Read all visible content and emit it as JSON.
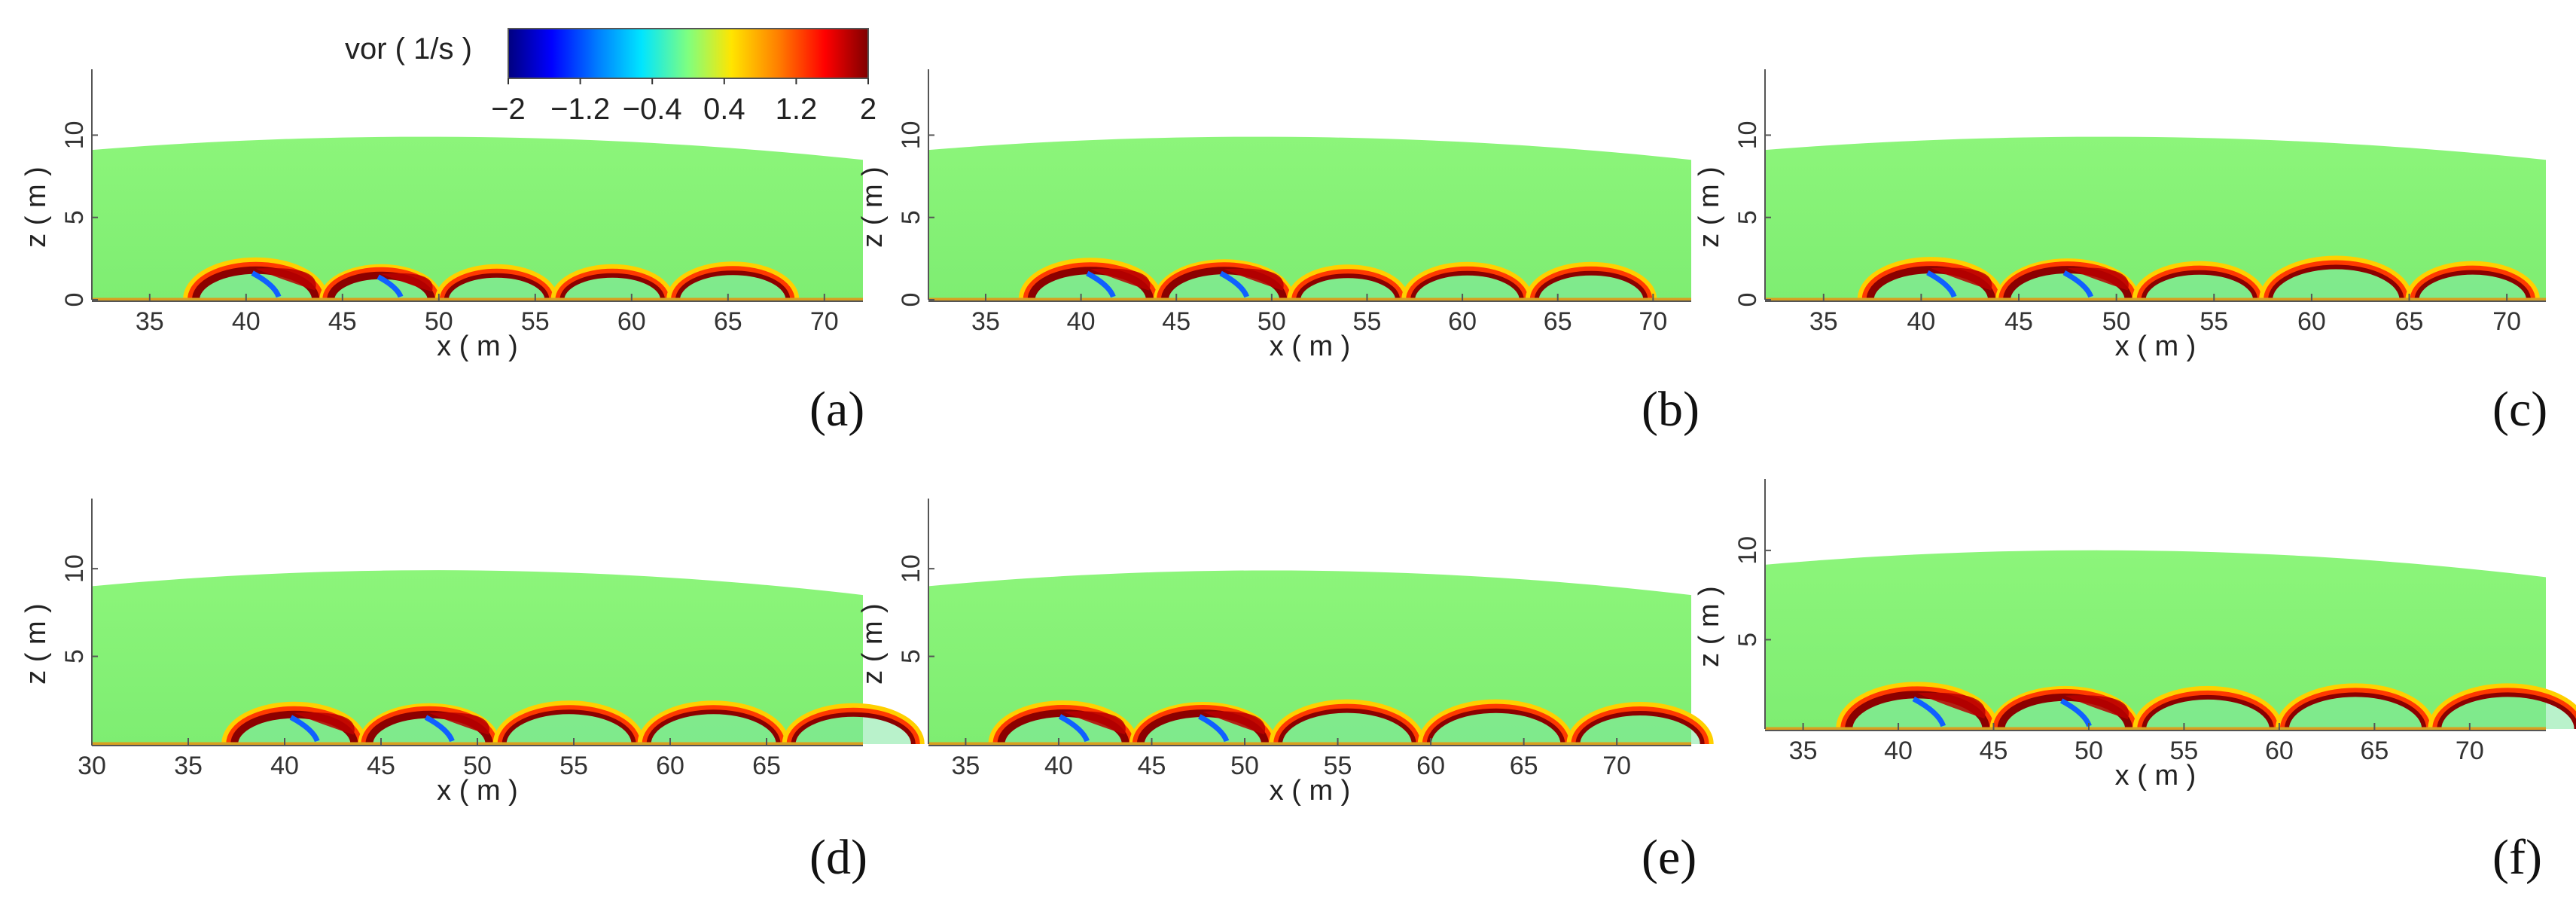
{
  "colorbar": {
    "title": "vor ( 1/s )",
    "ticks": [
      "−2",
      "−1.2",
      "−0.4",
      "0.4",
      "1.2",
      "2"
    ],
    "tick_values": [
      -2,
      -1.2,
      -0.4,
      0.4,
      1.2,
      2
    ],
    "range": [
      -2,
      2
    ],
    "colors": [
      "#00007f",
      "#0000ff",
      "#007fff",
      "#00e5ff",
      "#7fff7f",
      "#ffe500",
      "#ff7f00",
      "#ff0000",
      "#7f0000"
    ]
  },
  "colors": {
    "background_field": "#86f577",
    "field_dark": "#6ee26a",
    "ground_line": "#d8a020",
    "blue_vortex": "#1060ff"
  },
  "chart_data": [
    {
      "panel": "(a)",
      "type": "heatmap",
      "xlabel": "x ( m )",
      "ylabel": "z ( m )",
      "x_ticks": [
        "35",
        "40",
        "45",
        "50",
        "55",
        "60",
        "65",
        "70"
      ],
      "y_ticks": [
        "0",
        "5",
        "10"
      ],
      "xlim": [
        32,
        72
      ],
      "ylim": [
        0,
        14
      ],
      "free_surface": {
        "x": [
          32,
          50,
          72
        ],
        "z": [
          9.1,
          9.9,
          8.5
        ]
      },
      "vortex_arches": [
        {
          "x_start": 37,
          "x_end": 44
        },
        {
          "x_start": 44,
          "x_end": 50
        },
        {
          "x_start": 50,
          "x_end": 56
        },
        {
          "x_start": 56,
          "x_end": 62
        },
        {
          "x_start": 62,
          "x_end": 68.5
        }
      ]
    },
    {
      "panel": "(b)",
      "type": "heatmap",
      "xlabel": "x ( m )",
      "ylabel": "z ( m )",
      "x_ticks": [
        "35",
        "40",
        "45",
        "50",
        "55",
        "60",
        "65",
        "70"
      ],
      "y_ticks": [
        "0",
        "5",
        "10"
      ],
      "xlim": [
        32,
        72
      ],
      "ylim": [
        0,
        14
      ],
      "free_surface": {
        "x": [
          32,
          50,
          72
        ],
        "z": [
          9.1,
          9.9,
          8.5
        ]
      },
      "vortex_arches": [
        {
          "x_start": 37,
          "x_end": 44
        },
        {
          "x_start": 44,
          "x_end": 51
        },
        {
          "x_start": 51,
          "x_end": 57
        },
        {
          "x_start": 57,
          "x_end": 63.5
        },
        {
          "x_start": 63.5,
          "x_end": 70
        }
      ]
    },
    {
      "panel": "(c)",
      "type": "heatmap",
      "xlabel": "x ( m )",
      "ylabel": "z ( m )",
      "x_ticks": [
        "35",
        "40",
        "45",
        "50",
        "55",
        "60",
        "65",
        "70"
      ],
      "y_ticks": [
        "0",
        "5",
        "10"
      ],
      "xlim": [
        32,
        72
      ],
      "ylim": [
        0,
        14
      ],
      "free_surface": {
        "x": [
          32,
          50,
          72
        ],
        "z": [
          9.1,
          9.9,
          8.5
        ]
      },
      "vortex_arches": [
        {
          "x_start": 37,
          "x_end": 44
        },
        {
          "x_start": 44,
          "x_end": 51
        },
        {
          "x_start": 51,
          "x_end": 57.5
        },
        {
          "x_start": 57.5,
          "x_end": 65
        },
        {
          "x_start": 65,
          "x_end": 71.5
        }
      ]
    },
    {
      "panel": "(d)",
      "type": "heatmap",
      "xlabel": "x ( m )",
      "ylabel": "z ( m )",
      "x_ticks": [
        "30",
        "35",
        "40",
        "45",
        "50",
        "55",
        "60",
        "65"
      ],
      "y_ticks": [
        "5",
        "10"
      ],
      "xlim": [
        30,
        70
      ],
      "ylim": [
        0,
        14
      ],
      "free_surface": {
        "x": [
          30,
          50,
          70
        ],
        "z": [
          9.0,
          9.9,
          8.5
        ]
      },
      "vortex_arches": [
        {
          "x_start": 37,
          "x_end": 44
        },
        {
          "x_start": 44,
          "x_end": 51
        },
        {
          "x_start": 51,
          "x_end": 58.5
        },
        {
          "x_start": 58.5,
          "x_end": 66
        },
        {
          "x_start": 66,
          "x_end": 73
        }
      ]
    },
    {
      "panel": "(e)",
      "type": "heatmap",
      "xlabel": "x ( m )",
      "ylabel": "z ( m )",
      "x_ticks": [
        "35",
        "40",
        "45",
        "50",
        "55",
        "60",
        "65",
        "70"
      ],
      "y_ticks": [
        "5",
        "10"
      ],
      "xlim": [
        33,
        74
      ],
      "ylim": [
        0,
        14
      ],
      "free_surface": {
        "x": [
          33,
          52,
          74
        ],
        "z": [
          9.0,
          9.9,
          8.5
        ]
      },
      "vortex_arches": [
        {
          "x_start": 36.5,
          "x_end": 44
        },
        {
          "x_start": 44,
          "x_end": 51.5
        },
        {
          "x_start": 51.5,
          "x_end": 59.5
        },
        {
          "x_start": 59.5,
          "x_end": 67.5
        },
        {
          "x_start": 67.5,
          "x_end": 75
        }
      ]
    },
    {
      "panel": "(f)",
      "type": "heatmap",
      "xlabel": "x ( m )",
      "ylabel": "z ( m )",
      "x_ticks": [
        "35",
        "40",
        "45",
        "50",
        "55",
        "60",
        "65",
        "70"
      ],
      "y_ticks": [
        "5",
        "10"
      ],
      "xlim": [
        33,
        74
      ],
      "ylim": [
        0,
        14
      ],
      "free_surface": {
        "x": [
          33,
          52,
          74
        ],
        "z": [
          9.2,
          10.0,
          8.5
        ]
      },
      "vortex_arches": [
        {
          "x_start": 37,
          "x_end": 45
        },
        {
          "x_start": 45,
          "x_end": 52.5
        },
        {
          "x_start": 52.5,
          "x_end": 60
        },
        {
          "x_start": 60,
          "x_end": 68
        },
        {
          "x_start": 68,
          "x_end": 76
        }
      ]
    }
  ]
}
